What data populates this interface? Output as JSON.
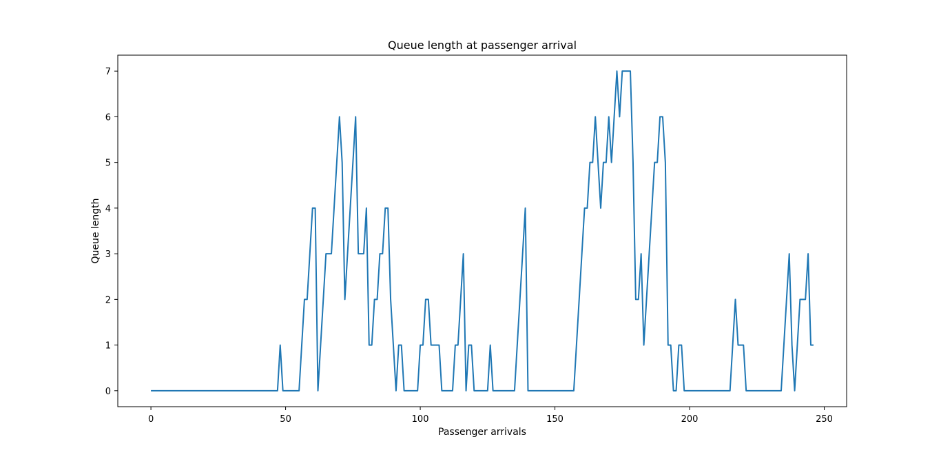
{
  "chart_data": {
    "type": "line",
    "title": "Queue length at passenger arrival",
    "xlabel": "Passenger arrivals",
    "ylabel": "Queue length",
    "xlim": [
      -12.3,
      258.3
    ],
    "ylim": [
      -0.35,
      7.35
    ],
    "xticks": [
      0,
      50,
      100,
      150,
      200,
      250
    ],
    "yticks": [
      0,
      1,
      2,
      3,
      4,
      5,
      6,
      7
    ],
    "grid": false,
    "line_color": "#1f77b4",
    "series": [
      {
        "values": [
          0,
          0,
          0,
          0,
          0,
          0,
          0,
          0,
          0,
          0,
          0,
          0,
          0,
          0,
          0,
          0,
          0,
          0,
          0,
          0,
          0,
          0,
          0,
          0,
          0,
          0,
          0,
          0,
          0,
          0,
          0,
          0,
          0,
          0,
          0,
          0,
          0,
          0,
          0,
          0,
          0,
          0,
          0,
          0,
          0,
          0,
          0,
          0,
          1,
          0,
          0,
          0,
          0,
          0,
          0,
          0,
          1,
          2,
          2,
          3,
          4,
          4,
          0,
          1,
          2,
          3,
          3,
          3,
          4,
          5,
          6,
          5,
          2,
          3,
          4,
          5,
          6,
          3,
          3,
          3,
          4,
          1,
          1,
          2,
          2,
          3,
          3,
          4,
          4,
          2,
          1,
          0,
          1,
          1,
          0,
          0,
          0,
          0,
          0,
          0,
          1,
          1,
          2,
          2,
          1,
          1,
          1,
          1,
          0,
          0,
          0,
          0,
          0,
          1,
          1,
          2,
          3,
          0,
          1,
          1,
          0,
          0,
          0,
          0,
          0,
          0,
          1,
          0,
          0,
          0,
          0,
          0,
          0,
          0,
          0,
          0,
          1,
          2,
          3,
          4,
          0,
          0,
          0,
          0,
          0,
          0,
          0,
          0,
          0,
          0,
          0,
          0,
          0,
          0,
          0,
          0,
          0,
          0,
          1,
          2,
          3,
          4,
          4,
          5,
          5,
          6,
          5,
          4,
          5,
          5,
          6,
          5,
          6,
          7,
          6,
          7,
          7,
          7,
          7,
          5,
          2,
          2,
          3,
          1,
          2,
          3,
          4,
          5,
          5,
          6,
          6,
          5,
          1,
          1,
          0,
          0,
          1,
          1,
          0,
          0,
          0,
          0,
          0,
          0,
          0,
          0,
          0,
          0,
          0,
          0,
          0,
          0,
          0,
          0,
          0,
          0,
          1,
          2,
          1,
          1,
          1,
          0,
          0,
          0,
          0,
          0,
          0,
          0,
          0,
          0,
          0,
          0,
          0,
          0,
          0,
          1,
          2,
          3,
          1,
          0,
          1,
          2,
          2,
          2,
          3,
          1,
          1
        ]
      }
    ]
  }
}
